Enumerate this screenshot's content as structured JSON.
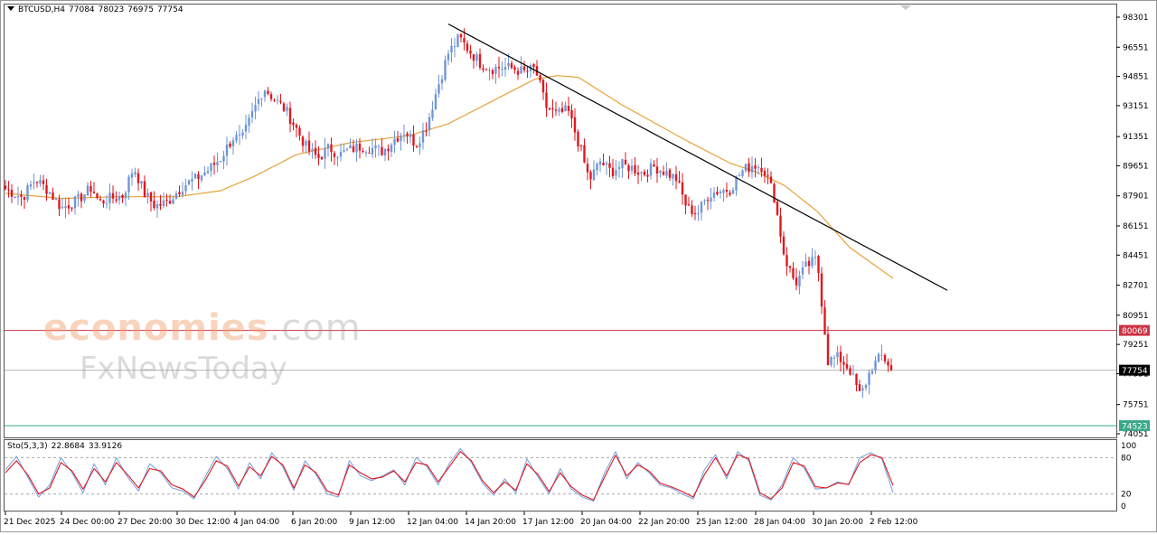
{
  "header": {
    "symbol": "BTCUSD,H4",
    "open": "77084",
    "high": "78023",
    "low": "76975",
    "close": "77754"
  },
  "watermark": {
    "brand_a": "economies",
    "brand_a_suffix": ".com",
    "brand_b": "FxNewsToday"
  },
  "colors": {
    "bull": "#6f96d6",
    "bear": "#e0171f",
    "ma": "#e8a23a",
    "trendline": "#000000",
    "resistance": "#cc3344",
    "support": "#3aa889",
    "current_line": "#b8b8b8",
    "stoch_k": "#7ea6e0",
    "stoch_d": "#e0171f"
  },
  "chart_data": [
    {
      "type": "candlestick",
      "title": "BTCUSD,H4",
      "y_axis_ticks": [
        98301,
        96551,
        94851,
        93151,
        91351,
        89651,
        87901,
        86151,
        84451,
        82701,
        80951,
        79251,
        77551,
        75751,
        74051
      ],
      "y_axis_labels": [
        "98301",
        "96551",
        "94851",
        "93151",
        "91351",
        "89651",
        "87901",
        "86151",
        "84451",
        "82701",
        "80951",
        "79251",
        "77551",
        "75751",
        "74051"
      ],
      "ylim": [
        74051,
        98301
      ],
      "x_axis_labels": [
        "21 Dec 2025",
        "24 Dec 00:00",
        "27 Dec 20:00",
        "30 Dec 12:00",
        "4 Jan 04:00",
        "6 Jan 20:00",
        "9 Jan 12:00",
        "12 Jan 04:00",
        "14 Jan 20:00",
        "17 Jan 12:00",
        "20 Jan 04:00",
        "22 Jan 20:00",
        "25 Jan 12:00",
        "28 Jan 04:00",
        "30 Jan 20:00",
        "2 Feb 12:00"
      ],
      "price_levels": [
        {
          "label": "80069",
          "value": 80069,
          "kind": "resistance"
        },
        {
          "label": "77754",
          "value": 77754,
          "kind": "current"
        },
        {
          "label": "74523",
          "value": 74523,
          "kind": "support"
        }
      ],
      "trendline": {
        "from": {
          "x": "14 Jan 00:00",
          "y": 97900
        },
        "to": {
          "x": "6 Feb 00:00",
          "y": 82400
        }
      },
      "close_path": [
        [
          "21 Dec 2025",
          88300
        ],
        [
          "22 Dec 12:00",
          87800
        ],
        [
          "23 Dec 00:00",
          88900
        ],
        [
          "23 Dec 12:00",
          88200
        ],
        [
          "24 Dec 00:00",
          87200
        ],
        [
          "25 Dec 00:00",
          87600
        ],
        [
          "26 Dec 00:00",
          88400
        ],
        [
          "26 Dec 12:00",
          87500
        ],
        [
          "27 Dec 00:00",
          87700
        ],
        [
          "28 Dec 00:00",
          87900
        ],
        [
          "28 Dec 12:00",
          89600
        ],
        [
          "29 Dec 00:00",
          88000
        ],
        [
          "29 Dec 12:00",
          87300
        ],
        [
          "30 Dec 00:00",
          87500
        ],
        [
          "31 Dec 00:00",
          88500
        ],
        [
          "1 Jan 00:00",
          88900
        ],
        [
          "2 Jan 00:00",
          89400
        ],
        [
          "3 Jan 00:00",
          90100
        ],
        [
          "3 Jan 12:00",
          90700
        ],
        [
          "4 Jan 00:00",
          91300
        ],
        [
          "4 Jan 12:00",
          91200
        ],
        [
          "5 Jan 00:00",
          92800
        ],
        [
          "5 Jan 12:00",
          94200
        ],
        [
          "6 Jan 00:00",
          93500
        ],
        [
          "6 Jan 12:00",
          92900
        ],
        [
          "7 Jan 00:00",
          91800
        ],
        [
          "7 Jan 12:00",
          90600
        ],
        [
          "8 Jan 00:00",
          90100
        ],
        [
          "8 Jan 12:00",
          90700
        ],
        [
          "9 Jan 00:00",
          90300
        ],
        [
          "9 Jan 12:00",
          90600
        ],
        [
          "10 Jan 00:00",
          90800
        ],
        [
          "11 Jan 00:00",
          90500
        ],
        [
          "11 Jan 12:00",
          91200
        ],
        [
          "12 Jan 00:00",
          91700
        ],
        [
          "12 Jan 12:00",
          90900
        ],
        [
          "13 Jan 00:00",
          92000
        ],
        [
          "13 Jan 12:00",
          94200
        ],
        [
          "14 Jan 00:00",
          96200
        ],
        [
          "14 Jan 12:00",
          97100
        ],
        [
          "15 Jan 00:00",
          96300
        ],
        [
          "15 Jan 12:00",
          95600
        ],
        [
          "16 Jan 00:00",
          95300
        ],
        [
          "16 Jan 12:00",
          95400
        ],
        [
          "17 Jan 00:00",
          95300
        ],
        [
          "17 Jan 12:00",
          95100
        ],
        [
          "18 Jan 00:00",
          95300
        ],
        [
          "18 Jan 12:00",
          93100
        ],
        [
          "19 Jan 00:00",
          92600
        ],
        [
          "19 Jan 12:00",
          92900
        ],
        [
          "20 Jan 00:00",
          91000
        ],
        [
          "20 Jan 12:00",
          88800
        ],
        [
          "21 Jan 00:00",
          89900
        ],
        [
          "21 Jan 12:00",
          89300
        ],
        [
          "22 Jan 00:00",
          89700
        ],
        [
          "22 Jan 12:00",
          89500
        ],
        [
          "23 Jan 00:00",
          89200
        ],
        [
          "23 Jan 12:00",
          89600
        ],
        [
          "24 Jan 00:00",
          89300
        ],
        [
          "24 Jan 12:00",
          88900
        ],
        [
          "25 Jan 00:00",
          87200
        ],
        [
          "25 Jan 12:00",
          86900
        ],
        [
          "26 Jan 00:00",
          88000
        ],
        [
          "26 Jan 12:00",
          88200
        ],
        [
          "27 Jan 00:00",
          88300
        ],
        [
          "27 Jan 12:00",
          89300
        ],
        [
          "28 Jan 00:00",
          89700
        ],
        [
          "28 Jan 12:00",
          89600
        ],
        [
          "29 Jan 00:00",
          88000
        ],
        [
          "29 Jan 12:00",
          84300
        ],
        [
          "30 Jan 00:00",
          82800
        ],
        [
          "30 Jan 12:00",
          83800
        ],
        [
          "31 Jan 00:00",
          84200
        ],
        [
          "31 Jan 12:00",
          78300
        ],
        [
          "1 Feb 00:00",
          78500
        ],
        [
          "1 Feb 12:00",
          77800
        ],
        [
          "2 Feb 00:00",
          76200
        ],
        [
          "2 Feb 12:00",
          77900
        ],
        [
          "3 Feb 00:00",
          78600
        ],
        [
          "3 Feb 12:00",
          77754
        ]
      ],
      "ma_path": [
        [
          "21 Dec 2025",
          88050
        ],
        [
          "24 Dec 00:00",
          87750
        ],
        [
          "27 Dec 20:00",
          87850
        ],
        [
          "30 Dec 12:00",
          87850
        ],
        [
          "3 Jan 00:00",
          88200
        ],
        [
          "5 Jan 00:00",
          89000
        ],
        [
          "7 Jan 00:00",
          90300
        ],
        [
          "9 Jan 12:00",
          91000
        ],
        [
          "12 Jan 04:00",
          91400
        ],
        [
          "14 Jan 00:00",
          92100
        ],
        [
          "16 Jan 00:00",
          93400
        ],
        [
          "18 Jan 00:00",
          94700
        ],
        [
          "19 Jan 00:00",
          94900
        ],
        [
          "20 Jan 00:00",
          94800
        ],
        [
          "22 Jan 00:00",
          93200
        ],
        [
          "25 Jan 00:00",
          91100
        ],
        [
          "27 Jan 00:00",
          89800
        ],
        [
          "28 Jan 04:00",
          89300
        ],
        [
          "29 Jan 12:00",
          88500
        ],
        [
          "31 Jan 00:00",
          87000
        ],
        [
          "1 Feb 12:00",
          84900
        ],
        [
          "3 Feb 12:00",
          83100
        ]
      ]
    },
    {
      "type": "line",
      "title": "Sto(5,3,3)",
      "indicator_label": "Sto(5,3,3)",
      "main_value": "22.8684",
      "signal_value": "33.9126",
      "y_axis_labels": [
        "100",
        "80",
        "20",
        "0"
      ],
      "y_axis_ticks": [
        100,
        80,
        20,
        0
      ],
      "ylim": [
        0,
        100
      ],
      "levels": [
        80,
        20
      ],
      "series": [
        {
          "values": [
            60,
            82,
            48,
            15,
            35,
            80,
            55,
            22,
            70,
            35,
            80,
            48,
            25,
            70,
            55,
            30,
            25,
            12,
            48,
            82,
            62,
            28,
            72,
            45,
            88,
            65,
            26,
            75,
            52,
            20,
            15,
            75,
            50,
            42,
            50,
            60,
            35,
            80,
            65,
            35,
            70,
            95,
            72,
            38,
            18,
            45,
            22,
            78,
            48,
            20,
            62,
            28,
            15,
            8,
            55,
            90,
            45,
            72,
            55,
            35,
            30,
            20,
            12,
            60,
            85,
            45,
            90,
            75,
            18,
            10,
            35,
            80,
            62,
            28,
            30,
            40,
            35,
            80,
            88,
            78,
            22
          ]
        },
        {
          "values": [
            55,
            75,
            52,
            20,
            30,
            72,
            58,
            28,
            62,
            40,
            72,
            52,
            30,
            62,
            58,
            35,
            28,
            15,
            42,
            75,
            66,
            33,
            65,
            50,
            82,
            68,
            30,
            68,
            55,
            25,
            18,
            68,
            55,
            45,
            48,
            58,
            40,
            72,
            68,
            40,
            65,
            90,
            75,
            42,
            22,
            40,
            26,
            70,
            52,
            24,
            55,
            32,
            18,
            10,
            48,
            84,
            50,
            68,
            58,
            38,
            32,
            24,
            15,
            52,
            80,
            50,
            85,
            78,
            22,
            12,
            30,
            72,
            66,
            32,
            30,
            38,
            36,
            72,
            85,
            80,
            34
          ]
        }
      ]
    }
  ]
}
